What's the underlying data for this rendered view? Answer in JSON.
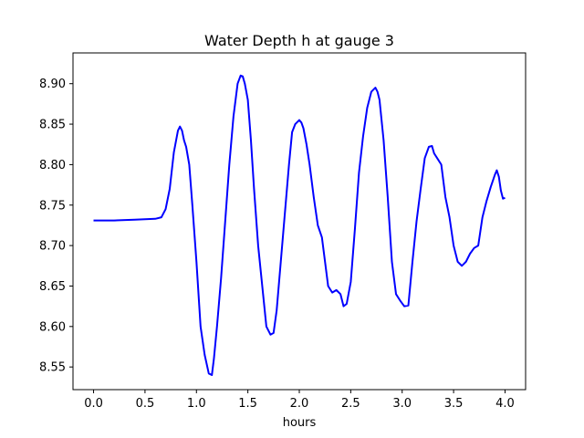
{
  "chart_data": {
    "type": "line",
    "title": "Water Depth h at gauge 3",
    "xlabel": "hours",
    "ylabel": "",
    "xlim": [
      -0.2,
      4.2
    ],
    "ylim": [
      8.522,
      8.938
    ],
    "xticks": [
      0.0,
      0.5,
      1.0,
      1.5,
      2.0,
      2.5,
      3.0,
      3.5,
      4.0
    ],
    "xtick_labels": [
      "0.0",
      "0.5",
      "1.0",
      "1.5",
      "2.0",
      "2.5",
      "3.0",
      "3.5",
      "4.0"
    ],
    "yticks": [
      8.55,
      8.6,
      8.65,
      8.7,
      8.75,
      8.8,
      8.85,
      8.9
    ],
    "ytick_labels": [
      "8.55",
      "8.60",
      "8.65",
      "8.70",
      "8.75",
      "8.80",
      "8.85",
      "8.90"
    ],
    "grid": false,
    "series": [
      {
        "color": "#0000ff",
        "x": [
          0.0,
          0.2,
          0.4,
          0.6,
          0.66,
          0.7,
          0.74,
          0.78,
          0.82,
          0.84,
          0.86,
          0.88,
          0.9,
          0.93,
          0.96,
          1.0,
          1.04,
          1.08,
          1.12,
          1.15,
          1.17,
          1.2,
          1.24,
          1.28,
          1.32,
          1.36,
          1.4,
          1.43,
          1.45,
          1.47,
          1.5,
          1.53,
          1.56,
          1.6,
          1.64,
          1.68,
          1.72,
          1.75,
          1.78,
          1.82,
          1.86,
          1.9,
          1.93,
          1.96,
          2.0,
          2.02,
          2.04,
          2.07,
          2.1,
          2.14,
          2.18,
          2.22,
          2.25,
          2.28,
          2.32,
          2.36,
          2.4,
          2.43,
          2.46,
          2.5,
          2.54,
          2.58,
          2.62,
          2.66,
          2.7,
          2.74,
          2.76,
          2.78,
          2.82,
          2.86,
          2.9,
          2.94,
          2.98,
          3.02,
          3.06,
          3.1,
          3.14,
          3.18,
          3.22,
          3.26,
          3.29,
          3.31,
          3.34,
          3.38,
          3.42,
          3.46,
          3.5,
          3.54,
          3.58,
          3.62,
          3.66,
          3.7,
          3.74,
          3.78,
          3.82,
          3.86,
          3.9,
          3.92,
          3.94,
          3.96,
          3.98,
          4.0
        ],
        "y": [
          8.731,
          8.731,
          8.732,
          8.733,
          8.735,
          8.745,
          8.77,
          8.815,
          8.842,
          8.847,
          8.842,
          8.83,
          8.822,
          8.8,
          8.75,
          8.68,
          8.6,
          8.565,
          8.542,
          8.54,
          8.56,
          8.6,
          8.66,
          8.73,
          8.8,
          8.86,
          8.9,
          8.91,
          8.909,
          8.9,
          8.88,
          8.83,
          8.77,
          8.7,
          8.65,
          8.6,
          8.59,
          8.592,
          8.62,
          8.68,
          8.74,
          8.8,
          8.84,
          8.85,
          8.855,
          8.852,
          8.845,
          8.825,
          8.8,
          8.76,
          8.725,
          8.71,
          8.68,
          8.65,
          8.642,
          8.645,
          8.64,
          8.625,
          8.628,
          8.655,
          8.72,
          8.79,
          8.835,
          8.87,
          8.89,
          8.895,
          8.89,
          8.88,
          8.83,
          8.76,
          8.68,
          8.64,
          8.632,
          8.625,
          8.626,
          8.68,
          8.73,
          8.77,
          8.808,
          8.822,
          8.823,
          8.814,
          8.808,
          8.8,
          8.76,
          8.735,
          8.7,
          8.68,
          8.675,
          8.68,
          8.69,
          8.697,
          8.7,
          8.735,
          8.755,
          8.772,
          8.787,
          8.793,
          8.785,
          8.768,
          8.758,
          8.759
        ]
      }
    ]
  }
}
